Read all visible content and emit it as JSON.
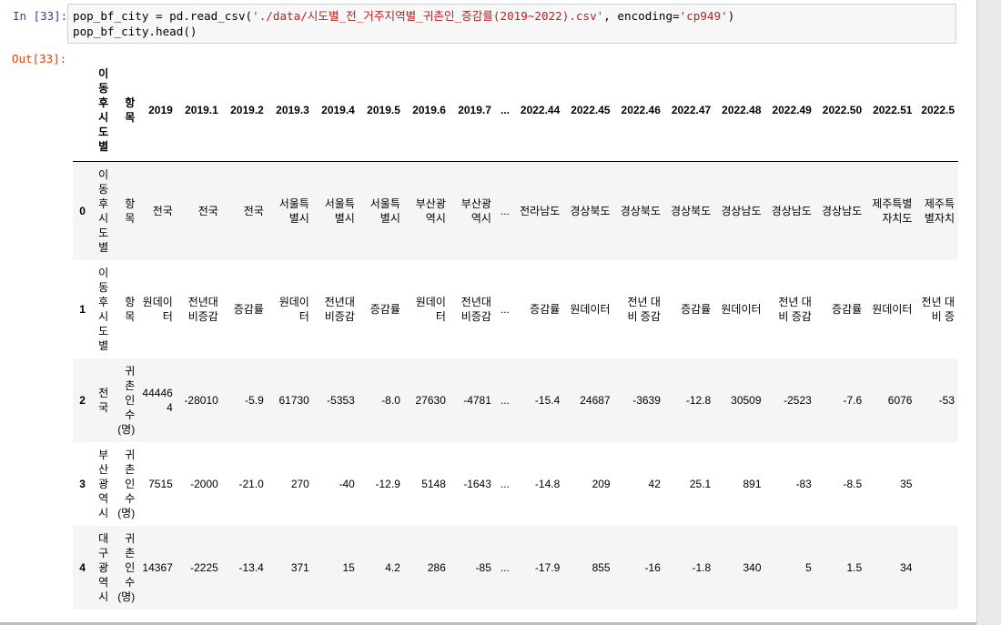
{
  "notebook": {
    "in_prompt": "In [33]:",
    "out_prompt": "Out[33]:",
    "code": {
      "line1_var": "pop_bf_city = pd.read_csv(",
      "line1_path": "'./data/시도별_전_거주지역별_귀촌인_증감률(2019~2022).csv'",
      "line1_mid": ", encoding=",
      "line1_enc": "'cp949'",
      "line1_end": ")",
      "line2": "pop_bf_city.head()"
    }
  },
  "dataframe": {
    "columns": [
      "이동후시도별",
      "항목",
      "2019",
      "2019.1",
      "2019.2",
      "2019.3",
      "2019.4",
      "2019.5",
      "2019.6",
      "2019.7",
      "...",
      "2022.44",
      "2022.45",
      "2022.46",
      "2022.47",
      "2022.48",
      "2022.49",
      "2022.50",
      "2022.51",
      "2022.5"
    ],
    "rows": [
      {
        "index": "0",
        "cells": [
          "이동후시도별",
          "항목",
          "전국",
          "전국",
          "전국",
          "서울특별시",
          "서울특별시",
          "서울특별시",
          "부산광역시",
          "부산광역시",
          "...",
          "전라남도",
          "경상북도",
          "경상북도",
          "경상북도",
          "경상남도",
          "경상남도",
          "경상남도",
          "제주특별자치도",
          "제주특별자치"
        ]
      },
      {
        "index": "1",
        "cells": [
          "이동후시도별",
          "항목",
          "원데이터",
          "전년대비증감",
          "증감률",
          "원데이터",
          "전년대비증감",
          "증감률",
          "원데이터",
          "전년대비증감",
          "...",
          "증감률",
          "원데이터",
          "전년 대비 증감",
          "증감률",
          "원데이터",
          "전년 대비 증감",
          "증감률",
          "원데이터",
          "전년 대비 증"
        ]
      },
      {
        "index": "2",
        "cells": [
          "전국",
          "귀촌인수(명)",
          "444464",
          "-28010",
          "-5.9",
          "61730",
          "-5353",
          "-8.0",
          "27630",
          "-4781",
          "...",
          "-15.4",
          "24687",
          "-3639",
          "-12.8",
          "30509",
          "-2523",
          "-7.6",
          "6076",
          "-53"
        ]
      },
      {
        "index": "3",
        "cells": [
          "부산광역시",
          "귀촌인수(명)",
          "7515",
          "-2000",
          "-21.0",
          "270",
          "-40",
          "-12.9",
          "5148",
          "-1643",
          "...",
          "-14.8",
          "209",
          "42",
          "25.1",
          "891",
          "-83",
          "-8.5",
          "35",
          ""
        ]
      },
      {
        "index": "4",
        "cells": [
          "대구광역시",
          "귀촌인수(명)",
          "14367",
          "-2225",
          "-13.4",
          "371",
          "15",
          "4.2",
          "286",
          "-85",
          "...",
          "-17.9",
          "855",
          "-16",
          "-1.8",
          "340",
          "5",
          "1.5",
          "34",
          ""
        ]
      }
    ]
  }
}
